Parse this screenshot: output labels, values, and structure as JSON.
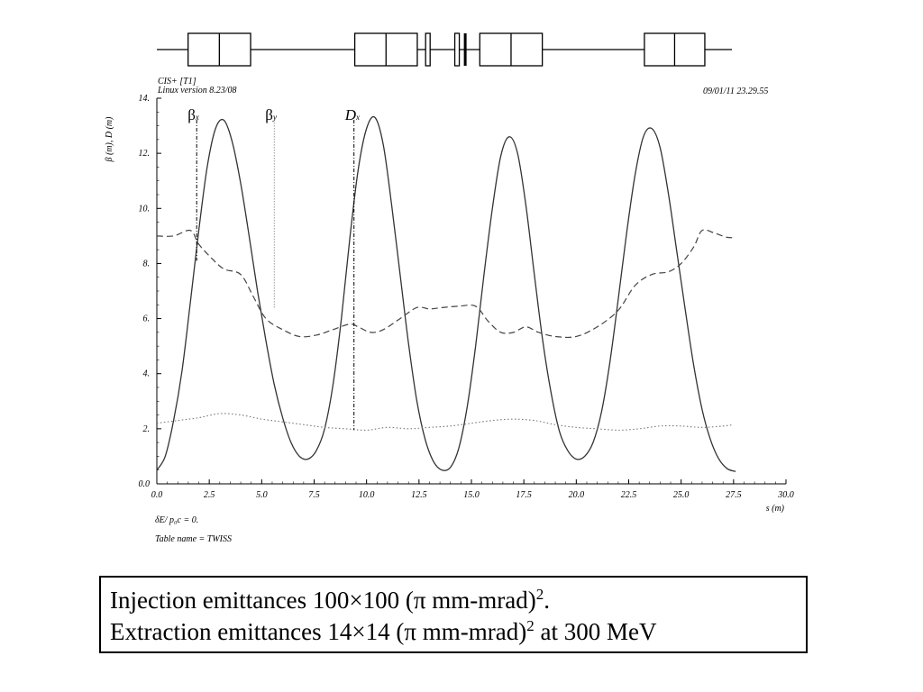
{
  "header": {
    "program": "CIS+ [T1]",
    "version": "Linux version 8.23/08",
    "timestamp": "09/01/11  23.29.55"
  },
  "footer": {
    "delta_label": "δE/ p₀c  =  0.",
    "table_name": "Table name = TWISS"
  },
  "caption": {
    "line1_main": "Injection emittances 100×100 (π mm-mrad)",
    "line1_sup": "2",
    "line1_tail": ".",
    "line2_main": "Extraction emittances 14×14 (π mm-mrad)",
    "line2_sup": "2",
    "line2_tail": " at 300 MeV"
  },
  "lattice_elements": [
    {
      "type": "dipole",
      "z_start": 1.5,
      "z_end": 4.5
    },
    {
      "type": "dipole",
      "z_start": 9.5,
      "z_end": 12.5
    },
    {
      "type": "thin",
      "z": 12.9
    },
    {
      "type": "thin",
      "z": 14.3
    },
    {
      "type": "thick-line",
      "z": 14.8
    },
    {
      "type": "dipole",
      "z_start": 15.5,
      "z_end": 18.5
    },
    {
      "type": "dipole",
      "z_start": 23.4,
      "z_end": 26.3
    }
  ],
  "chart_data": {
    "type": "line",
    "xlabel": "s (m)",
    "ylabel": "β (m), D (m)",
    "xlim": [
      0.0,
      30.0
    ],
    "ylim": [
      0.0,
      14.0
    ],
    "xticks": [
      "0.0",
      "2.5",
      "5.0",
      "7.5",
      "10.0",
      "12.5",
      "15.0",
      "17.5",
      "20.0",
      "22.5",
      "25.0",
      "27.5",
      "30.0"
    ],
    "yticks": [
      "0.0",
      "2.",
      "4.",
      "6.",
      "8.",
      "10.",
      "12.",
      "14."
    ],
    "grid": false,
    "legend": [
      {
        "label": "βx",
        "x": 1.9
      },
      {
        "label": "βy",
        "x": 5.6
      },
      {
        "label": "Dx",
        "x": 9.4
      }
    ],
    "series": [
      {
        "name": "βx",
        "style": "solid",
        "x": [
          0.0,
          0.4,
          0.8,
          1.2,
          1.6,
          2.0,
          2.4,
          2.8,
          3.2,
          3.6,
          4.0,
          4.4,
          4.8,
          5.2,
          5.6,
          6.0,
          6.4,
          6.8,
          7.2,
          7.6,
          8.0,
          8.4,
          8.8,
          9.2,
          9.6,
          10.0,
          10.4,
          10.8,
          11.2,
          11.6,
          12.0,
          12.4,
          12.8,
          13.2,
          13.6,
          14.0,
          14.4,
          14.8,
          15.2,
          15.6,
          16.0,
          16.4,
          16.8,
          17.2,
          17.6,
          18.0,
          18.4,
          18.8,
          19.2,
          19.6,
          20.0,
          20.4,
          20.8,
          21.2,
          21.6,
          22.0,
          22.4,
          22.8,
          23.2,
          23.6,
          24.0,
          24.4,
          24.8,
          25.2,
          25.6,
          26.0,
          26.4,
          26.8,
          27.2,
          27.6
        ],
        "values": [
          0.5,
          1.0,
          2.3,
          4.1,
          6.6,
          9.2,
          11.5,
          12.9,
          13.2,
          12.4,
          10.9,
          9.0,
          7.0,
          5.2,
          3.6,
          2.4,
          1.5,
          1.0,
          0.9,
          1.2,
          2.0,
          3.6,
          6.0,
          8.9,
          11.4,
          12.9,
          13.3,
          12.3,
          10.1,
          7.6,
          5.1,
          3.0,
          1.6,
          0.8,
          0.5,
          0.6,
          1.3,
          2.8,
          5.0,
          7.6,
          10.0,
          11.9,
          12.6,
          12.0,
          10.1,
          7.6,
          5.2,
          3.3,
          1.9,
          1.2,
          0.9,
          1.0,
          1.5,
          2.6,
          4.4,
          6.7,
          9.1,
          11.2,
          12.6,
          12.9,
          12.2,
          10.5,
          8.4,
          6.3,
          4.3,
          2.7,
          1.6,
          0.9,
          0.55,
          0.45
        ]
      },
      {
        "name": "βy",
        "style": "dotted",
        "x": [
          0.0,
          1.0,
          2.0,
          3.0,
          4.0,
          5.0,
          6.0,
          7.0,
          8.0,
          9.0,
          10.0,
          11.0,
          12.0,
          13.0,
          14.0,
          15.0,
          16.0,
          17.0,
          18.0,
          19.0,
          20.0,
          21.0,
          22.0,
          23.0,
          24.0,
          25.0,
          26.0,
          27.0,
          27.5
        ],
        "values": [
          2.2,
          2.3,
          2.4,
          2.55,
          2.5,
          2.35,
          2.25,
          2.15,
          2.05,
          2.0,
          1.95,
          2.05,
          2.0,
          2.05,
          2.1,
          2.2,
          2.3,
          2.35,
          2.3,
          2.15,
          2.05,
          2.0,
          1.95,
          2.0,
          2.1,
          2.1,
          2.05,
          2.1,
          2.15
        ]
      },
      {
        "name": "Dx",
        "style": "dashed",
        "x": [
          0.0,
          0.8,
          1.6,
          2.0,
          2.6,
          3.2,
          4.0,
          4.6,
          5.2,
          6.0,
          6.8,
          7.6,
          8.4,
          9.2,
          9.6,
          10.2,
          10.8,
          11.6,
          12.4,
          13.0,
          13.6,
          14.4,
          15.2,
          15.8,
          16.4,
          17.0,
          17.6,
          18.2,
          19.0,
          20.0,
          21.0,
          22.0,
          22.8,
          23.6,
          24.4,
          25.0,
          25.6,
          26.0,
          26.6,
          27.2,
          27.6
        ],
        "values": [
          9.0,
          9.0,
          9.2,
          8.7,
          8.2,
          7.8,
          7.6,
          6.8,
          6.0,
          5.6,
          5.35,
          5.4,
          5.6,
          5.8,
          5.7,
          5.5,
          5.6,
          6.0,
          6.4,
          6.35,
          6.4,
          6.45,
          6.45,
          5.9,
          5.5,
          5.5,
          5.7,
          5.5,
          5.35,
          5.35,
          5.7,
          6.3,
          7.2,
          7.6,
          7.7,
          8.0,
          8.6,
          9.2,
          9.1,
          8.95,
          8.95
        ]
      }
    ]
  }
}
